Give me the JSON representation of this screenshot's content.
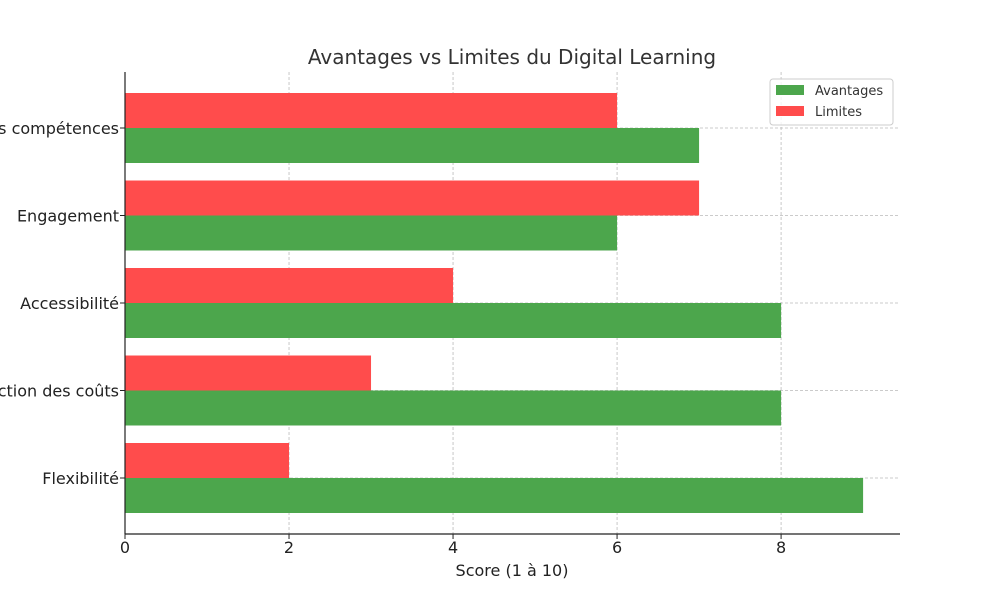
{
  "chart_data": {
    "type": "bar",
    "orientation": "horizontal",
    "title": "Avantages vs Limites du Digital Learning",
    "xlabel": "Score (1 à 10)",
    "ylabel": "",
    "categories": [
      "Flexibilité",
      "Réduction des coûts",
      "Accessibilité",
      "Engagement",
      "Développement des compétences"
    ],
    "series": [
      {
        "name": "Avantages",
        "color": "#4ca64c",
        "values": [
          9,
          8,
          8,
          6,
          7
        ]
      },
      {
        "name": "Limites",
        "color": "#ff4c4c",
        "values": [
          2,
          3,
          4,
          7,
          6
        ]
      }
    ],
    "xlim": [
      0,
      9.45
    ],
    "xticks": [
      "0",
      "2",
      "4",
      "6",
      "8"
    ],
    "grid": true,
    "legend": "top-right"
  }
}
